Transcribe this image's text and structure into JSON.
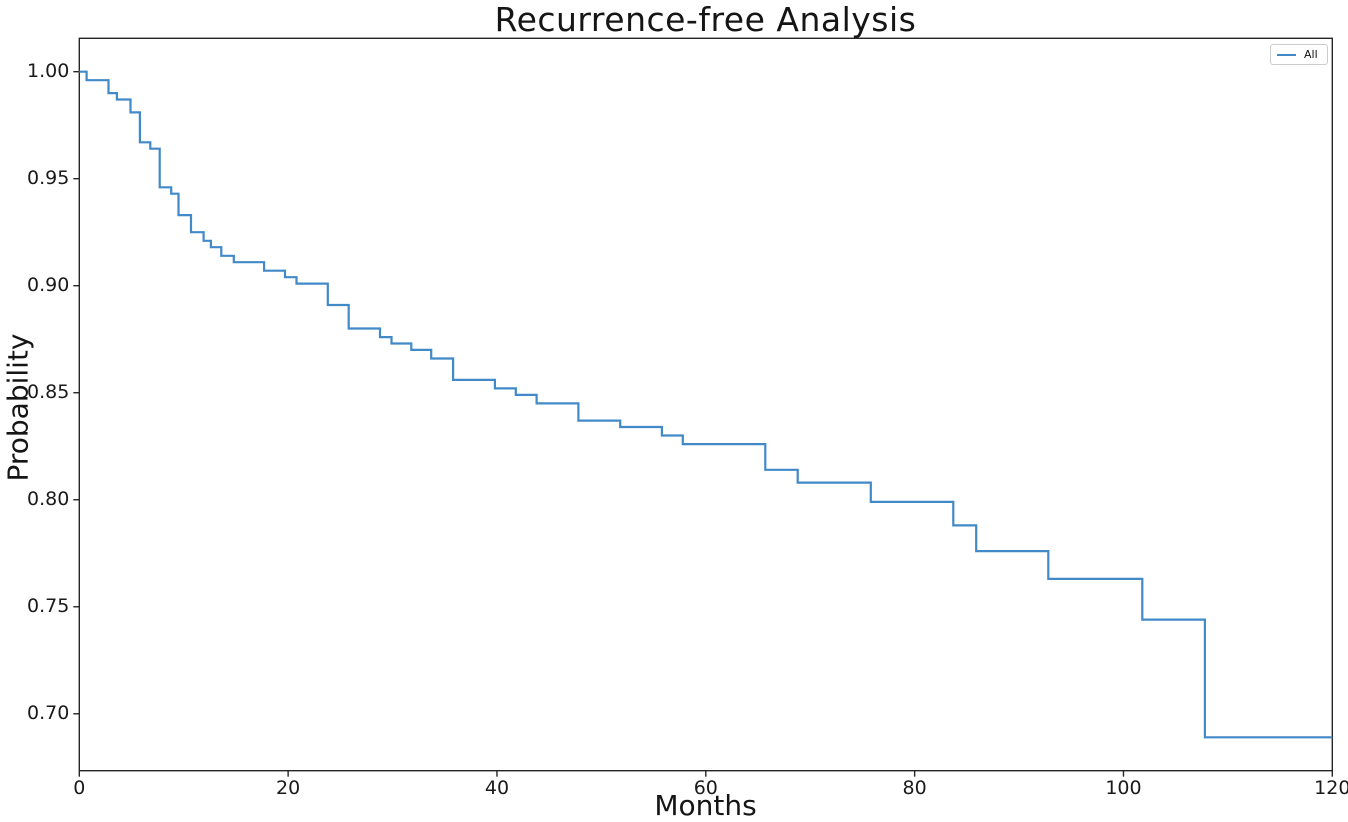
{
  "chart_data": {
    "type": "line",
    "subtype": "kaplan-meier-step",
    "title": "Recurrence-free Analysis",
    "xlabel": "Months",
    "ylabel": "Probability",
    "xlim": [
      0,
      120
    ],
    "ylim": [
      0.6734,
      1.0156
    ],
    "grid": false,
    "xticks": [
      {
        "v": 0,
        "label": "0"
      },
      {
        "v": 20,
        "label": "20"
      },
      {
        "v": 40,
        "label": "40"
      },
      {
        "v": 60,
        "label": "60"
      },
      {
        "v": 80,
        "label": "80"
      },
      {
        "v": 100,
        "label": "100"
      },
      {
        "v": 120,
        "label": "120"
      }
    ],
    "yticks": [
      {
        "v": 0.7,
        "label": "0.70"
      },
      {
        "v": 0.75,
        "label": "0.75"
      },
      {
        "v": 0.8,
        "label": "0.80"
      },
      {
        "v": 0.85,
        "label": "0.85"
      },
      {
        "v": 0.9,
        "label": "0.90"
      },
      {
        "v": 0.95,
        "label": "0.95"
      },
      {
        "v": 1.0,
        "label": "1.00"
      }
    ],
    "legend": {
      "position": "upper right",
      "entries": [
        {
          "label": "All",
          "color": "#4189c7"
        }
      ]
    },
    "series": [
      {
        "name": "All",
        "color": "#4189c7",
        "step": "post",
        "x": [
          0,
          0.7,
          2.8,
          3.6,
          4.9,
          5.8,
          6.8,
          7.7,
          8.8,
          9.5,
          10.7,
          11.9,
          12.6,
          13.6,
          14.8,
          17.7,
          19.7,
          20.8,
          23.8,
          25.8,
          28.8,
          29.9,
          31.8,
          33.7,
          35.8,
          39.8,
          41.8,
          43.8,
          47.8,
          51.8,
          55.8,
          57.8,
          65.7,
          68.8,
          75.8,
          83.7,
          85.9,
          92.8,
          101.8,
          107.8,
          120
        ],
        "y": [
          1.0,
          0.996,
          0.99,
          0.987,
          0.981,
          0.967,
          0.964,
          0.946,
          0.943,
          0.933,
          0.925,
          0.921,
          0.918,
          0.914,
          0.911,
          0.907,
          0.904,
          0.901,
          0.891,
          0.88,
          0.876,
          0.873,
          0.87,
          0.866,
          0.856,
          0.852,
          0.849,
          0.845,
          0.837,
          0.834,
          0.83,
          0.826,
          0.814,
          0.808,
          0.799,
          0.788,
          0.776,
          0.763,
          0.744,
          0.689,
          0.689
        ]
      }
    ]
  },
  "colors": {
    "line": "#4189c7",
    "spine": "#262626",
    "text": "#151515"
  }
}
